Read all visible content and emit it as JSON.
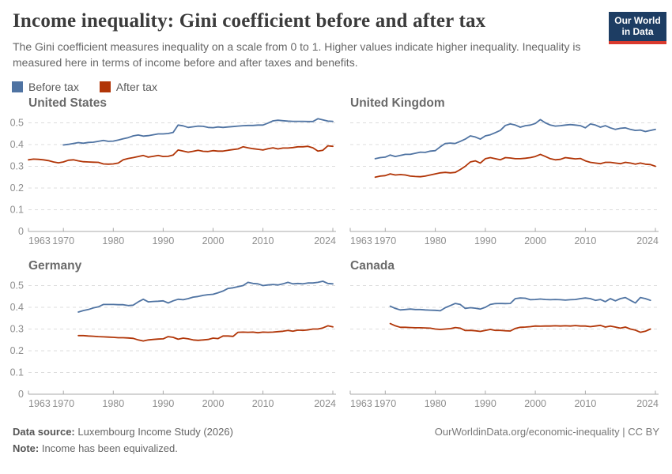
{
  "header": {
    "title": "Income inequality: Gini coefficient before and after tax",
    "subtitle": "The Gini coefficient measures inequality on a scale from 0 to 1. Higher values indicate higher inequality. Inequality is measured here in terms of income before and after taxes and benefits."
  },
  "logo": {
    "line1": "Our World",
    "line2": "in Data",
    "bg_color": "#1d3d63",
    "bar_color": "#d93a2e"
  },
  "legend": {
    "items": [
      {
        "label": "Before tax",
        "color": "#4f73a2"
      },
      {
        "label": "After tax",
        "color": "#b13507"
      }
    ]
  },
  "axes": {
    "x_range": [
      1963,
      2024
    ],
    "x_ticks": [
      1963,
      1970,
      1980,
      1990,
      2000,
      2010,
      2024
    ],
    "y_ticks": [
      0,
      0.1,
      0.2,
      0.3,
      0.4,
      0.5
    ],
    "ylim": [
      0,
      0.53
    ],
    "grid": "dashed horizontal"
  },
  "chart_data": [
    {
      "type": "line",
      "title": "United States",
      "show_y_labels": true,
      "series": [
        {
          "name": "Before tax",
          "color": "#4f73a2",
          "start_year": 1970,
          "values": [
            0.398,
            0.401,
            0.405,
            0.409,
            0.406,
            0.41,
            0.411,
            0.415,
            0.419,
            0.415,
            0.416,
            0.421,
            0.427,
            0.432,
            0.44,
            0.444,
            0.439,
            0.441,
            0.445,
            0.449,
            0.449,
            0.451,
            0.456,
            0.49,
            0.486,
            0.479,
            0.482,
            0.485,
            0.484,
            0.479,
            0.478,
            0.481,
            0.479,
            0.481,
            0.483,
            0.485,
            0.487,
            0.488,
            0.488,
            0.49,
            0.49,
            0.499,
            0.509,
            0.512,
            0.51,
            0.508,
            0.507,
            0.507,
            0.507,
            0.506,
            0.506,
            0.519,
            0.514,
            0.508,
            0.507
          ]
        },
        {
          "name": "After tax",
          "color": "#b13507",
          "start_year": 1963,
          "values": [
            0.33,
            0.333,
            0.332,
            0.33,
            0.326,
            0.32,
            0.316,
            0.32,
            0.328,
            0.33,
            0.325,
            0.321,
            0.32,
            0.319,
            0.318,
            0.311,
            0.31,
            0.311,
            0.315,
            0.33,
            0.336,
            0.34,
            0.345,
            0.35,
            0.342,
            0.346,
            0.35,
            0.345,
            0.346,
            0.352,
            0.375,
            0.37,
            0.365,
            0.369,
            0.374,
            0.369,
            0.368,
            0.372,
            0.37,
            0.37,
            0.374,
            0.377,
            0.38,
            0.39,
            0.385,
            0.381,
            0.378,
            0.375,
            0.381,
            0.385,
            0.38,
            0.384,
            0.384,
            0.386,
            0.39,
            0.39,
            0.392,
            0.385,
            0.37,
            0.374,
            0.394,
            0.392
          ]
        }
      ]
    },
    {
      "type": "line",
      "title": "United Kingdom",
      "show_y_labels": false,
      "series": [
        {
          "name": "Before tax",
          "color": "#4f73a2",
          "start_year": 1968,
          "values": [
            0.335,
            0.34,
            0.342,
            0.352,
            0.345,
            0.35,
            0.355,
            0.355,
            0.36,
            0.365,
            0.364,
            0.37,
            0.372,
            0.39,
            0.405,
            0.407,
            0.405,
            0.415,
            0.425,
            0.44,
            0.435,
            0.425,
            0.44,
            0.445,
            0.455,
            0.465,
            0.488,
            0.495,
            0.49,
            0.48,
            0.487,
            0.49,
            0.497,
            0.515,
            0.5,
            0.49,
            0.485,
            0.487,
            0.49,
            0.492,
            0.49,
            0.487,
            0.477,
            0.495,
            0.49,
            0.48,
            0.487,
            0.477,
            0.47,
            0.475,
            0.477,
            0.47,
            0.465,
            0.467,
            0.46,
            0.465,
            0.47
          ]
        },
        {
          "name": "After tax",
          "color": "#b13507",
          "start_year": 1968,
          "values": [
            0.25,
            0.255,
            0.257,
            0.265,
            0.26,
            0.262,
            0.26,
            0.255,
            0.253,
            0.252,
            0.255,
            0.26,
            0.265,
            0.27,
            0.272,
            0.27,
            0.272,
            0.285,
            0.3,
            0.32,
            0.325,
            0.315,
            0.335,
            0.34,
            0.335,
            0.33,
            0.34,
            0.338,
            0.335,
            0.335,
            0.337,
            0.34,
            0.345,
            0.355,
            0.345,
            0.335,
            0.33,
            0.332,
            0.34,
            0.337,
            0.334,
            0.336,
            0.325,
            0.318,
            0.315,
            0.312,
            0.318,
            0.318,
            0.315,
            0.312,
            0.318,
            0.315,
            0.31,
            0.315,
            0.31,
            0.308,
            0.3
          ]
        }
      ]
    },
    {
      "type": "line",
      "title": "Germany",
      "show_y_labels": true,
      "series": [
        {
          "name": "Before tax",
          "color": "#4f73a2",
          "start_year": 1973,
          "values": [
            0.378,
            0.385,
            0.39,
            0.397,
            0.402,
            0.413,
            0.413,
            0.413,
            0.412,
            0.412,
            0.408,
            0.41,
            0.425,
            0.437,
            0.425,
            0.427,
            0.428,
            0.43,
            0.42,
            0.43,
            0.437,
            0.435,
            0.44,
            0.447,
            0.45,
            0.455,
            0.458,
            0.46,
            0.467,
            0.475,
            0.487,
            0.49,
            0.495,
            0.5,
            0.515,
            0.51,
            0.508,
            0.5,
            0.503,
            0.505,
            0.503,
            0.508,
            0.515,
            0.508,
            0.51,
            0.508,
            0.512,
            0.512,
            0.515,
            0.52,
            0.51,
            0.508
          ]
        },
        {
          "name": "After tax",
          "color": "#b13507",
          "start_year": 1973,
          "values": [
            0.27,
            0.27,
            0.268,
            0.267,
            0.265,
            0.264,
            0.263,
            0.262,
            0.26,
            0.26,
            0.259,
            0.257,
            0.25,
            0.245,
            0.25,
            0.252,
            0.254,
            0.255,
            0.265,
            0.262,
            0.253,
            0.258,
            0.255,
            0.25,
            0.248,
            0.25,
            0.252,
            0.258,
            0.256,
            0.268,
            0.268,
            0.266,
            0.285,
            0.286,
            0.285,
            0.286,
            0.283,
            0.286,
            0.285,
            0.286,
            0.288,
            0.29,
            0.294,
            0.29,
            0.295,
            0.294,
            0.296,
            0.3,
            0.3,
            0.305,
            0.315,
            0.31
          ]
        }
      ]
    },
    {
      "type": "line",
      "title": "Canada",
      "show_y_labels": false,
      "series": [
        {
          "name": "Before tax",
          "color": "#4f73a2",
          "start_year": 1971,
          "values": [
            0.405,
            0.395,
            0.388,
            0.39,
            0.392,
            0.39,
            0.39,
            0.388,
            0.387,
            0.386,
            0.384,
            0.398,
            0.408,
            0.418,
            0.413,
            0.395,
            0.398,
            0.396,
            0.392,
            0.4,
            0.413,
            0.417,
            0.418,
            0.417,
            0.418,
            0.44,
            0.443,
            0.442,
            0.435,
            0.436,
            0.438,
            0.436,
            0.435,
            0.436,
            0.435,
            0.433,
            0.435,
            0.436,
            0.44,
            0.443,
            0.44,
            0.432,
            0.436,
            0.426,
            0.44,
            0.43,
            0.44,
            0.445,
            0.432,
            0.42,
            0.445,
            0.44,
            0.432
          ]
        },
        {
          "name": "After tax",
          "color": "#b13507",
          "start_year": 1971,
          "values": [
            0.325,
            0.315,
            0.308,
            0.308,
            0.307,
            0.306,
            0.306,
            0.305,
            0.304,
            0.3,
            0.298,
            0.3,
            0.302,
            0.307,
            0.304,
            0.293,
            0.294,
            0.292,
            0.289,
            0.294,
            0.298,
            0.294,
            0.294,
            0.292,
            0.291,
            0.303,
            0.308,
            0.309,
            0.311,
            0.314,
            0.313,
            0.314,
            0.314,
            0.315,
            0.314,
            0.315,
            0.314,
            0.316,
            0.314,
            0.314,
            0.311,
            0.314,
            0.317,
            0.309,
            0.314,
            0.309,
            0.304,
            0.309,
            0.3,
            0.295,
            0.285,
            0.29,
            0.3
          ]
        }
      ]
    }
  ],
  "footer": {
    "source_label": "Data source:",
    "source_text": " Luxembourg Income Study (2026)",
    "note_label": "Note:",
    "note_text": " Income has been equivalized.",
    "right_text": "OurWorldinData.org/economic-inequality | CC BY"
  },
  "style_colors": {
    "gridline": "#dcdcdc",
    "axis": "#a9a9a9",
    "tick_label": "#8e8e8e"
  }
}
